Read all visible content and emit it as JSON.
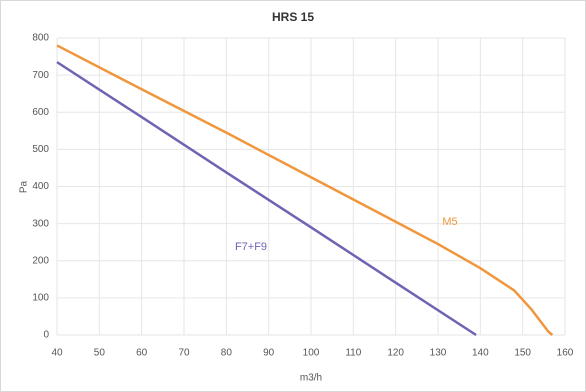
{
  "chart_data": {
    "type": "line",
    "title": "HRS 15",
    "xlabel": "m3/h",
    "ylabel": "Pa",
    "xlim": [
      40,
      160
    ],
    "xticks": [
      40,
      50,
      60,
      70,
      80,
      90,
      100,
      110,
      120,
      130,
      140,
      150,
      160
    ],
    "ylim": [
      0,
      800
    ],
    "yticks": [
      0,
      100,
      200,
      300,
      400,
      500,
      600,
      700,
      800
    ],
    "grid": true,
    "series": [
      {
        "name": "M5",
        "color": "#f0963c",
        "x": [
          40,
          60,
          80,
          100,
          120,
          130,
          140,
          148,
          152,
          156,
          157
        ],
        "values": [
          780,
          662,
          545,
          425,
          305,
          245,
          180,
          120,
          70,
          10,
          0
        ]
      },
      {
        "name": "F7+F9",
        "color": "#7262b4",
        "x": [
          40,
          60,
          80,
          100,
          120,
          139
        ],
        "values": [
          735,
          587,
          438,
          290,
          141,
          0
        ]
      }
    ]
  }
}
